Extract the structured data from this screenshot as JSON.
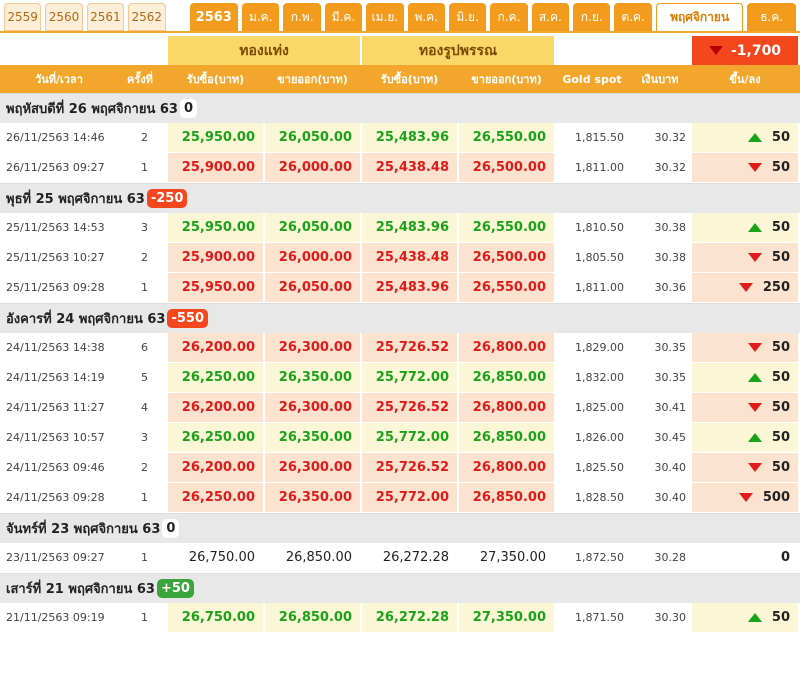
{
  "tabs": {
    "years": [
      "2559",
      "2560",
      "2561",
      "2562"
    ],
    "active_year": "2563",
    "months": [
      "ม.ค.",
      "ก.พ.",
      "มี.ค.",
      "เม.ย.",
      "พ.ค.",
      "มิ.ย.",
      "ก.ค.",
      "ส.ค.",
      "ก.ย.",
      "ต.ค."
    ],
    "active_month": "พฤศจิกายน",
    "last_month": "ธ.ค."
  },
  "header": {
    "group_bar": "ทองแท่ง",
    "group_ornament": "ทองรูปพรรณ",
    "total_change": "-1,700",
    "total_change_color": "#f4471e",
    "columns": {
      "time": "วันที่/เวลา",
      "round": "ครั้งที่",
      "bar_buy": "รับซื้อ(บาท)",
      "bar_sell": "ขายออก(บาท)",
      "orn_buy": "รับซื้อ(บาท)",
      "orn_sell": "ขายออก(บาท)",
      "spot": "Gold spot",
      "thb": "เงินบาท",
      "change": "ขึ้น/ลง"
    }
  },
  "days": [
    {
      "title": "พฤหัสบดีที่ 26 พฤศจิกายน 63",
      "change": "0",
      "kind": "zero",
      "rows": [
        {
          "time": "26/11/2563 14:46",
          "round": "2",
          "bar_buy": "25,950.00",
          "bar_sell": "26,050.00",
          "orn_buy": "25,483.96",
          "orn_sell": "26,550.00",
          "spot": "1,815.50",
          "thb": "30.32",
          "dir": "up",
          "change": "50"
        },
        {
          "time": "26/11/2563 09:27",
          "round": "1",
          "bar_buy": "25,900.00",
          "bar_sell": "26,000.00",
          "orn_buy": "25,438.48",
          "orn_sell": "26,500.00",
          "spot": "1,811.00",
          "thb": "30.32",
          "dir": "down",
          "change": "50"
        }
      ]
    },
    {
      "title": "พุธที่ 25 พฤศจิกายน 63",
      "change": "-250",
      "kind": "neg",
      "rows": [
        {
          "time": "25/11/2563 14:53",
          "round": "3",
          "bar_buy": "25,950.00",
          "bar_sell": "26,050.00",
          "orn_buy": "25,483.96",
          "orn_sell": "26,550.00",
          "spot": "1,810.50",
          "thb": "30.38",
          "dir": "up",
          "change": "50"
        },
        {
          "time": "25/11/2563 10:27",
          "round": "2",
          "bar_buy": "25,900.00",
          "bar_sell": "26,000.00",
          "orn_buy": "25,438.48",
          "orn_sell": "26,500.00",
          "spot": "1,805.50",
          "thb": "30.38",
          "dir": "down",
          "change": "50"
        },
        {
          "time": "25/11/2563 09:28",
          "round": "1",
          "bar_buy": "25,950.00",
          "bar_sell": "26,050.00",
          "orn_buy": "25,483.96",
          "orn_sell": "26,550.00",
          "spot": "1,811.00",
          "thb": "30.36",
          "dir": "down",
          "change": "250"
        }
      ]
    },
    {
      "title": "อังคารที่ 24 พฤศจิกายน 63",
      "change": "-550",
      "kind": "neg",
      "rows": [
        {
          "time": "24/11/2563 14:38",
          "round": "6",
          "bar_buy": "26,200.00",
          "bar_sell": "26,300.00",
          "orn_buy": "25,726.52",
          "orn_sell": "26,800.00",
          "spot": "1,829.00",
          "thb": "30.35",
          "dir": "down",
          "change": "50"
        },
        {
          "time": "24/11/2563 14:19",
          "round": "5",
          "bar_buy": "26,250.00",
          "bar_sell": "26,350.00",
          "orn_buy": "25,772.00",
          "orn_sell": "26,850.00",
          "spot": "1,832.00",
          "thb": "30.35",
          "dir": "up",
          "change": "50"
        },
        {
          "time": "24/11/2563 11:27",
          "round": "4",
          "bar_buy": "26,200.00",
          "bar_sell": "26,300.00",
          "orn_buy": "25,726.52",
          "orn_sell": "26,800.00",
          "spot": "1,825.00",
          "thb": "30.41",
          "dir": "down",
          "change": "50"
        },
        {
          "time": "24/11/2563 10:57",
          "round": "3",
          "bar_buy": "26,250.00",
          "bar_sell": "26,350.00",
          "orn_buy": "25,772.00",
          "orn_sell": "26,850.00",
          "spot": "1,826.00",
          "thb": "30.45",
          "dir": "up",
          "change": "50"
        },
        {
          "time": "24/11/2563 09:46",
          "round": "2",
          "bar_buy": "26,200.00",
          "bar_sell": "26,300.00",
          "orn_buy": "25,726.52",
          "orn_sell": "26,800.00",
          "spot": "1,825.50",
          "thb": "30.40",
          "dir": "down",
          "change": "50"
        },
        {
          "time": "24/11/2563 09:28",
          "round": "1",
          "bar_buy": "26,250.00",
          "bar_sell": "26,350.00",
          "orn_buy": "25,772.00",
          "orn_sell": "26,850.00",
          "spot": "1,828.50",
          "thb": "30.40",
          "dir": "down",
          "change": "500"
        }
      ]
    },
    {
      "title": "จันทร์ที่ 23 พฤศจิกายน 63",
      "change": "0",
      "kind": "zero",
      "rows": [
        {
          "time": "23/11/2563 09:27",
          "round": "1",
          "bar_buy": "26,750.00",
          "bar_sell": "26,850.00",
          "orn_buy": "26,272.28",
          "orn_sell": "27,350.00",
          "spot": "1,872.50",
          "thb": "30.28",
          "dir": "flat",
          "change": "0"
        }
      ]
    },
    {
      "title": "เสาร์ที่ 21 พฤศจิกายน 63",
      "change": "+50",
      "kind": "pos",
      "rows": [
        {
          "time": "21/11/2563 09:19",
          "round": "1",
          "bar_buy": "26,750.00",
          "bar_sell": "26,850.00",
          "orn_buy": "26,272.28",
          "orn_sell": "27,350.00",
          "spot": "1,871.50",
          "thb": "30.30",
          "dir": "up",
          "change": "50"
        }
      ]
    }
  ]
}
